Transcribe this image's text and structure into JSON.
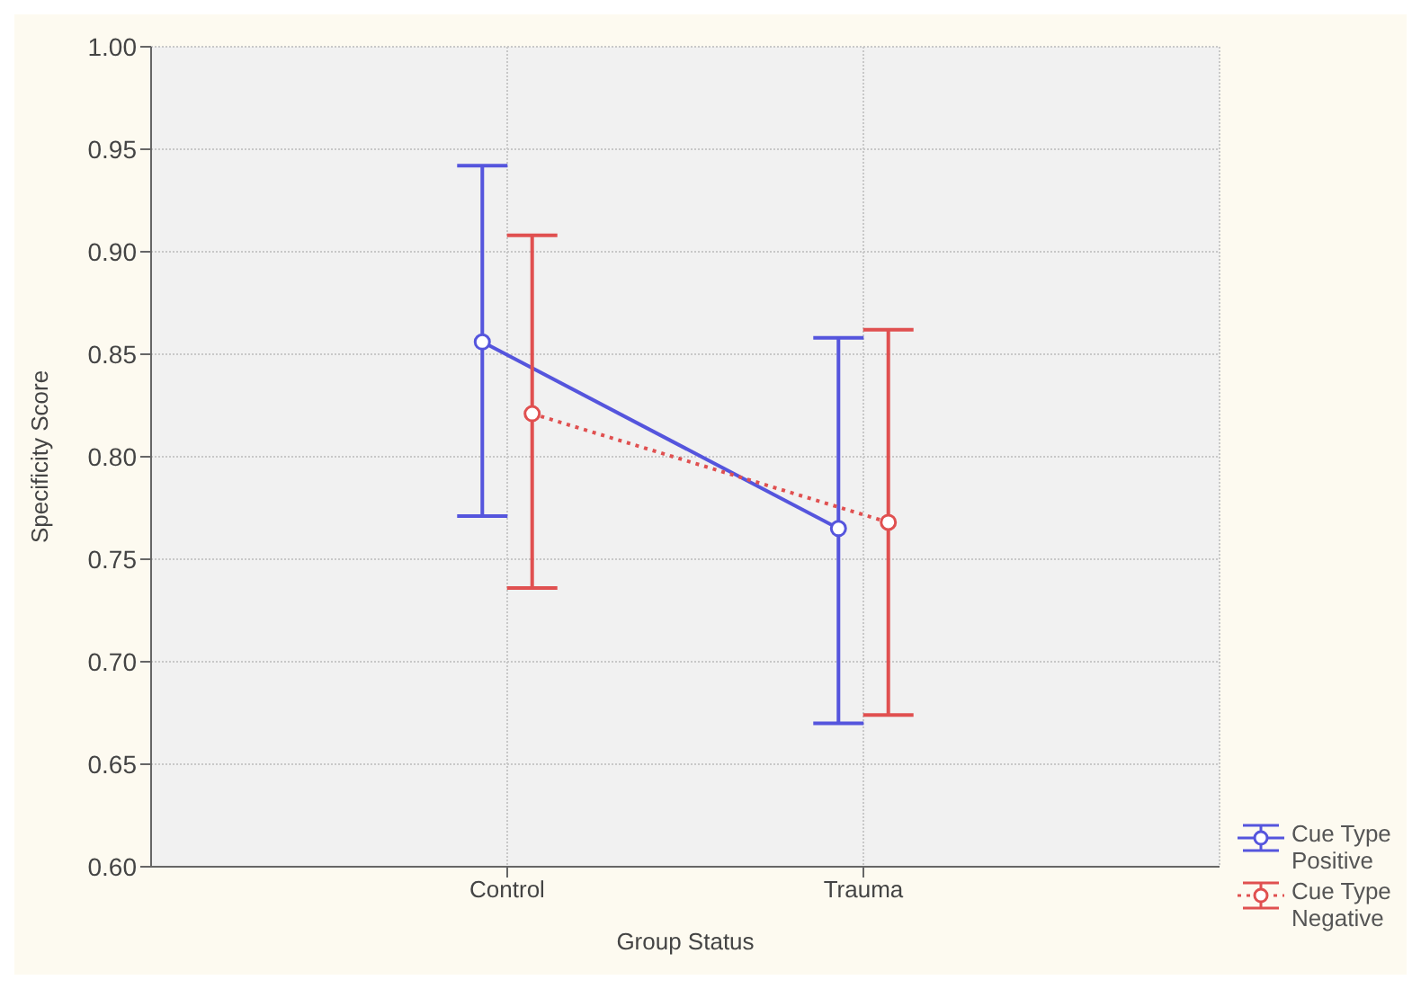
{
  "chart_data": {
    "type": "line",
    "xlabel": "Group Status",
    "ylabel": "Specificity Score",
    "categories": [
      "Control",
      "Trauma"
    ],
    "series": [
      {
        "name": "Cue Type Positive",
        "color": "#5555dd",
        "values": [
          0.856,
          0.765
        ],
        "errors": [
          [
            0.771,
            0.942
          ],
          [
            0.67,
            0.858
          ]
        ],
        "line_style": "solid"
      },
      {
        "name": "Cue Type Negative",
        "color": "#e05050",
        "values": [
          0.821,
          0.768
        ],
        "errors": [
          [
            0.736,
            0.908
          ],
          [
            0.674,
            0.862
          ]
        ],
        "line_style": "dotted"
      }
    ],
    "ylim": [
      0.6,
      1.0
    ],
    "yticks": [
      {
        "value": 0.6,
        "label": "0.60"
      },
      {
        "value": 0.65,
        "label": "0.65"
      },
      {
        "value": 0.7,
        "label": "0.70"
      },
      {
        "value": 0.75,
        "label": "0.75"
      },
      {
        "value": 0.8,
        "label": "0.80"
      },
      {
        "value": 0.85,
        "label": "0.85"
      },
      {
        "value": 0.9,
        "label": "0.90"
      },
      {
        "value": 0.95,
        "label": "0.95"
      },
      {
        "value": 1.0,
        "label": "1.00"
      }
    ],
    "grid": true,
    "legend": "bottom right",
    "marker": "circle"
  }
}
